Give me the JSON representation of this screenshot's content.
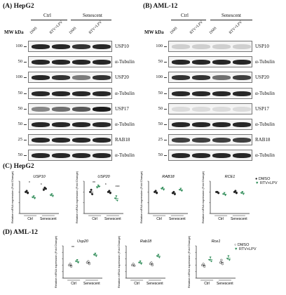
{
  "panelA": {
    "title": "(A) HepG2",
    "group_ctrl": "Ctrl",
    "group_sen": "Senescent",
    "lanes": [
      "DMS",
      "RTV+LPV",
      "DMS",
      "RTV+LPV"
    ],
    "mw_header": "MW kDa",
    "blots": [
      {
        "mw": "100",
        "label": "USP10",
        "intensity": [
          0.9,
          0.9,
          0.85,
          0.9
        ]
      },
      {
        "mw": "50",
        "label": "α-Tubulin",
        "intensity": [
          0.9,
          0.9,
          0.9,
          0.9
        ]
      },
      {
        "mw": "100",
        "label": "USP20",
        "intensity": [
          0.9,
          0.85,
          0.55,
          0.85
        ]
      },
      {
        "mw": "50",
        "label": "α-Tubulin",
        "intensity": [
          0.9,
          0.9,
          0.9,
          0.9
        ]
      },
      {
        "mw": "50",
        "label": "USP17",
        "intensity": [
          0.5,
          0.6,
          0.7,
          0.95
        ]
      },
      {
        "mw": "50",
        "label": "α-Tubulin",
        "intensity": [
          0.9,
          0.9,
          0.9,
          0.9
        ]
      },
      {
        "mw": "25",
        "label": "RAB18",
        "intensity": [
          0.9,
          0.9,
          0.9,
          0.9
        ]
      },
      {
        "mw": "50",
        "label": "α-Tubulin",
        "intensity": [
          0.9,
          0.9,
          0.9,
          0.9
        ]
      }
    ]
  },
  "panelB": {
    "title": "(B) AML-12",
    "group_ctrl": "Ctrl",
    "group_sen": "Senescent",
    "lanes": [
      "DMS",
      "RTV+LPV",
      "DMS",
      "RTV+LPV"
    ],
    "mw_header": "MW kDa",
    "blots": [
      {
        "mw": "100",
        "label": "USP10",
        "intensity": [
          0.2,
          0.2,
          0.2,
          0.2
        ]
      },
      {
        "mw": "50",
        "label": "α-Tubulin",
        "intensity": [
          0.9,
          0.9,
          0.9,
          0.9
        ]
      },
      {
        "mw": "100",
        "label": "USP20",
        "intensity": [
          0.85,
          0.85,
          0.6,
          0.8
        ]
      },
      {
        "mw": "50",
        "label": "α-Tubulin",
        "intensity": [
          0.9,
          0.9,
          0.9,
          0.9
        ]
      },
      {
        "mw": "50",
        "label": "USP17",
        "intensity": [
          0.15,
          0.15,
          0.15,
          0.15
        ]
      },
      {
        "mw": "50",
        "label": "α-Tubulin",
        "intensity": [
          0.9,
          0.9,
          0.9,
          0.9
        ]
      },
      {
        "mw": "25",
        "label": "RAB18",
        "intensity": [
          0.8,
          0.8,
          0.8,
          0.8
        ]
      },
      {
        "mw": "50",
        "label": "α-Tubulin",
        "intensity": [
          0.9,
          0.9,
          0.9,
          0.9
        ]
      }
    ]
  },
  "panelC": {
    "title": "(C) HepG2"
  },
  "panelD": {
    "title": "(D) AML-12"
  },
  "colors": {
    "dmso": "#222222",
    "rtv": "#2e8b57"
  },
  "legend": {
    "dmso": "DMSO",
    "rtv": "RTV+LPV"
  },
  "ylabel": "Relative mRNA expression (Fold Change)",
  "xgroups": [
    "Ctrl",
    "Senescent"
  ],
  "chart_data": [
    {
      "type": "scatter",
      "title": "USP10",
      "panel": "C",
      "ylim": [
        0,
        1.5
      ],
      "series": [
        {
          "name": "DMSO",
          "groups": [
            [
              1.0,
              1.05,
              0.95
            ],
            [
              1.1,
              1.2,
              1.15
            ]
          ]
        },
        {
          "name": "RTV+LPV",
          "groups": [
            [
              0.75,
              0.8,
              0.7
            ],
            [
              0.85,
              0.9,
              0.8
            ]
          ]
        }
      ],
      "annotations": [
        "*",
        "*"
      ]
    },
    {
      "type": "scatter",
      "title": "USP20",
      "panel": "C",
      "ylim": [
        0,
        1.5
      ],
      "series": [
        {
          "name": "DMSO",
          "groups": [
            [
              1.0,
              1.1,
              0.9
            ],
            [
              1.0,
              1.05,
              0.95
            ]
          ]
        },
        {
          "name": "RTV+LPV",
          "groups": [
            [
              1.2,
              1.3,
              1.25
            ],
            [
              0.7,
              0.8,
              0.6
            ]
          ]
        }
      ],
      "annotations": [
        "**",
        "*",
        "***"
      ]
    },
    {
      "type": "scatter",
      "title": "RAB18",
      "panel": "C",
      "ylim": [
        0,
        1.5
      ],
      "series": [
        {
          "name": "DMSO",
          "groups": [
            [
              1.0,
              1.05,
              0.95
            ],
            [
              0.95,
              1.0,
              0.9
            ]
          ]
        },
        {
          "name": "RTV+LPV",
          "groups": [
            [
              1.15,
              1.2,
              1.1
            ],
            [
              1.1,
              1.15,
              1.05
            ]
          ]
        }
      ],
      "annotations": []
    },
    {
      "type": "scatter",
      "title": "RCE1",
      "panel": "C",
      "ylim": [
        0,
        1.5
      ],
      "series": [
        {
          "name": "DMSO",
          "groups": [
            [
              1.0,
              1.0,
              0.95
            ],
            [
              1.0,
              1.05,
              0.95
            ]
          ]
        },
        {
          "name": "RTV+LPV",
          "groups": [
            [
              0.9,
              0.95,
              0.85
            ],
            [
              0.95,
              1.0,
              0.9
            ]
          ]
        }
      ],
      "annotations": []
    },
    {
      "type": "scatter",
      "title": "Usp20",
      "panel": "D",
      "ylim": [
        0,
        2.5
      ],
      "series": [
        {
          "name": "DMSO",
          "groups": [
            [
              1.0,
              1.1,
              0.9
            ],
            [
              1.2,
              1.3,
              1.1
            ]
          ]
        },
        {
          "name": "RTV+LPV",
          "groups": [
            [
              1.3,
              1.4,
              1.2
            ],
            [
              1.8,
              1.9,
              1.7
            ]
          ]
        }
      ],
      "annotations": [
        "**"
      ]
    },
    {
      "type": "scatter",
      "title": "Rab18",
      "panel": "D",
      "ylim": [
        0,
        2.5
      ],
      "series": [
        {
          "name": "DMSO",
          "groups": [
            [
              1.0,
              1.1,
              0.95
            ],
            [
              1.1,
              1.2,
              1.0
            ]
          ]
        },
        {
          "name": "RTV+LPV",
          "groups": [
            [
              1.2,
              1.3,
              1.1
            ],
            [
              1.7,
              1.8,
              1.6
            ]
          ]
        }
      ],
      "annotations": []
    },
    {
      "type": "scatter",
      "title": "Rce1",
      "panel": "D",
      "ylim": [
        0,
        2.5
      ],
      "series": [
        {
          "name": "DMSO",
          "groups": [
            [
              1.0,
              1.1,
              0.9
            ],
            [
              1.2,
              1.4,
              1.1
            ]
          ]
        },
        {
          "name": "RTV+LPV",
          "groups": [
            [
              1.4,
              1.6,
              1.3
            ],
            [
              1.5,
              1.7,
              1.4
            ]
          ]
        }
      ],
      "annotations": []
    }
  ]
}
